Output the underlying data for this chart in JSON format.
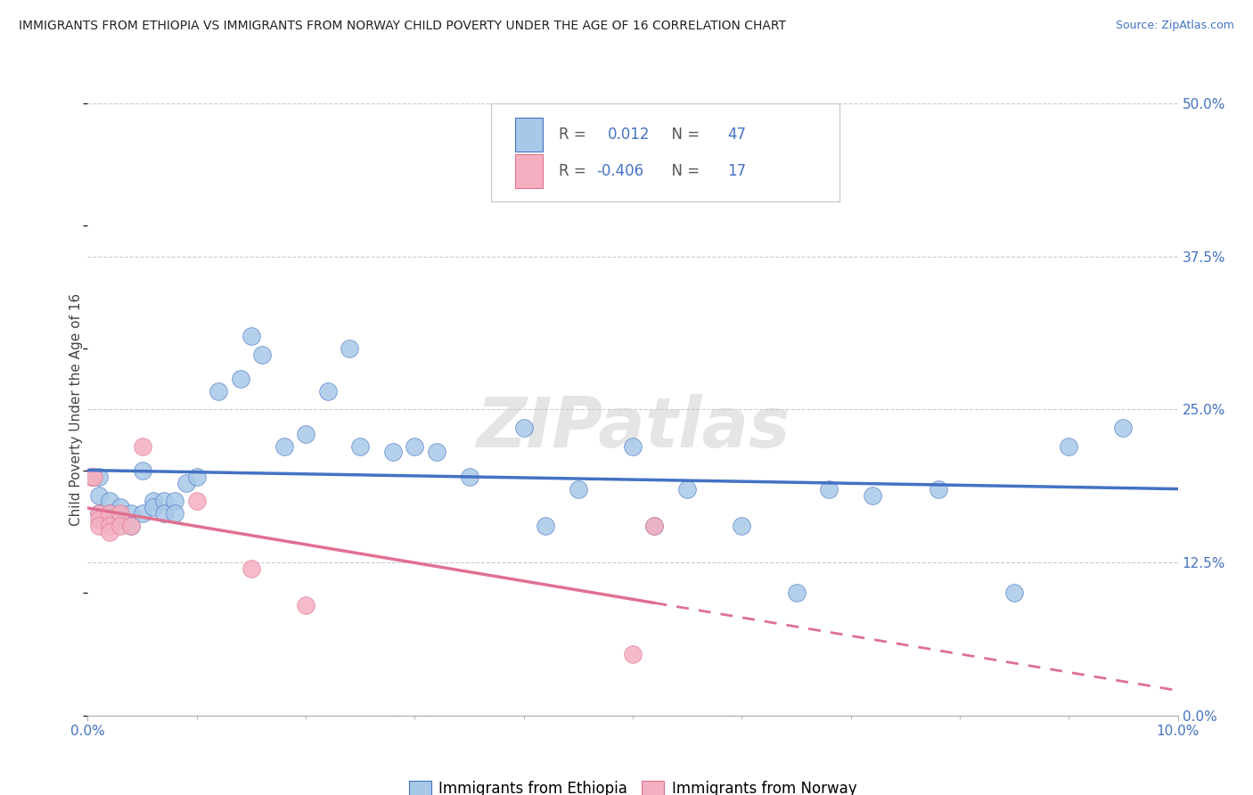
{
  "title": "IMMIGRANTS FROM ETHIOPIA VS IMMIGRANTS FROM NORWAY CHILD POVERTY UNDER THE AGE OF 16 CORRELATION CHART",
  "source": "Source: ZipAtlas.com",
  "ylabel": "Child Poverty Under the Age of 16",
  "legend_label1": "Immigrants from Ethiopia",
  "legend_label2": "Immigrants from Norway",
  "R1": 0.012,
  "N1": 47,
  "R2": -0.406,
  "N2": 17,
  "xmin": 0.0,
  "xmax": 0.1,
  "ymin": 0.0,
  "ymax": 0.5,
  "ytick_vals": [
    0.0,
    0.125,
    0.25,
    0.375,
    0.5
  ],
  "ytick_labels": [
    "0.0%",
    "12.5%",
    "25.0%",
    "37.5%",
    "50.0%"
  ],
  "xtick_vals": [
    0.0,
    0.1
  ],
  "xtick_labels": [
    "0.0%",
    "10.0%"
  ],
  "color_ethiopia": "#a8c8e8",
  "color_norway": "#f4b0c0",
  "line_color_ethiopia": "#4472c4",
  "line_color_norway": "#e07090",
  "background_color": "#ffffff",
  "watermark": "ZIPatlas",
  "ethiopia_x": [
    0.0005,
    0.001,
    0.001,
    0.001,
    0.002,
    0.002,
    0.003,
    0.003,
    0.004,
    0.004,
    0.005,
    0.005,
    0.006,
    0.006,
    0.007,
    0.007,
    0.008,
    0.008,
    0.009,
    0.01,
    0.012,
    0.014,
    0.015,
    0.016,
    0.018,
    0.02,
    0.022,
    0.024,
    0.025,
    0.028,
    0.03,
    0.032,
    0.035,
    0.04,
    0.042,
    0.045,
    0.05,
    0.052,
    0.055,
    0.06,
    0.065,
    0.068,
    0.072,
    0.078,
    0.085,
    0.09,
    0.095
  ],
  "ethiopia_y": [
    0.195,
    0.195,
    0.18,
    0.165,
    0.175,
    0.165,
    0.17,
    0.16,
    0.165,
    0.155,
    0.2,
    0.165,
    0.175,
    0.17,
    0.175,
    0.165,
    0.175,
    0.165,
    0.19,
    0.195,
    0.265,
    0.275,
    0.31,
    0.295,
    0.22,
    0.23,
    0.265,
    0.3,
    0.22,
    0.215,
    0.22,
    0.215,
    0.195,
    0.235,
    0.155,
    0.185,
    0.22,
    0.155,
    0.185,
    0.155,
    0.1,
    0.185,
    0.18,
    0.185,
    0.1,
    0.22,
    0.235
  ],
  "norway_x": [
    0.0003,
    0.0005,
    0.001,
    0.001,
    0.001,
    0.002,
    0.002,
    0.002,
    0.003,
    0.003,
    0.004,
    0.005,
    0.01,
    0.015,
    0.02,
    0.05,
    0.052
  ],
  "norway_y": [
    0.195,
    0.195,
    0.165,
    0.16,
    0.155,
    0.165,
    0.155,
    0.15,
    0.165,
    0.155,
    0.155,
    0.22,
    0.175,
    0.12,
    0.09,
    0.05,
    0.155
  ]
}
